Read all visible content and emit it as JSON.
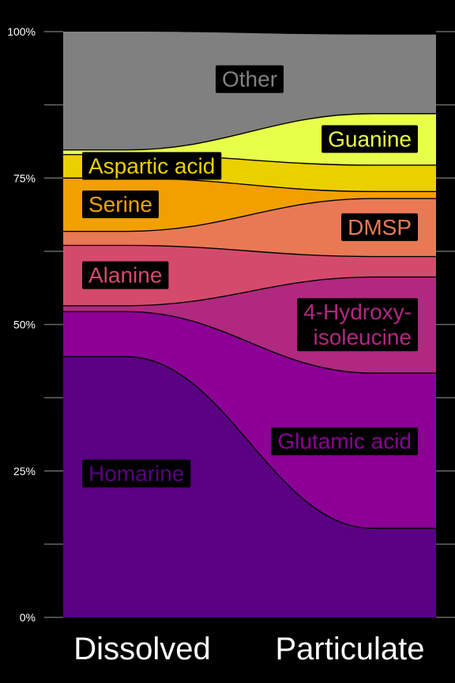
{
  "chart_data": {
    "type": "area",
    "title": "",
    "xlabel": "",
    "ylabel": "",
    "categories": [
      "Dissolved",
      "Particulate"
    ],
    "ylim": [
      0,
      100
    ],
    "yticks": [
      0,
      25,
      50,
      75,
      100
    ],
    "ytick_labels": [
      "0%",
      "25%",
      "50%",
      "75%",
      "100%"
    ],
    "background": "#000000",
    "series": [
      {
        "name": "Homarine",
        "label": [
          "Homarine"
        ],
        "values": [
          44.5,
          15.2
        ],
        "color": "#5a0083",
        "label_side": "left"
      },
      {
        "name": "Glutamic acid",
        "label": [
          "Glutamic acid"
        ],
        "values": [
          7.7,
          26.5
        ],
        "color": "#8c0096",
        "label_side": "right"
      },
      {
        "name": "4-Hydroxy-isoleucine",
        "label": [
          "4-Hydroxy-",
          "isoleucine"
        ],
        "values": [
          1.0,
          16.4
        ],
        "color": "#b02880",
        "label_side": "right"
      },
      {
        "name": "Alanine",
        "label": [
          "Alanine"
        ],
        "values": [
          10.3,
          3.5
        ],
        "color": "#d44a6c",
        "label_side": "left"
      },
      {
        "name": "DMSP",
        "label": [
          "DMSP"
        ],
        "values": [
          2.4,
          9.9
        ],
        "color": "#e87954",
        "label_side": "right"
      },
      {
        "name": "Serine",
        "label": [
          "Serine"
        ],
        "values": [
          9.1,
          1.2
        ],
        "color": "#f2a000",
        "label_side": "left"
      },
      {
        "name": "Aspartic acid",
        "label": [
          "Aspartic acid"
        ],
        "values": [
          4.0,
          4.5
        ],
        "color": "#ebd000",
        "label_side": "left"
      },
      {
        "name": "Guanine",
        "label": [
          "Guanine"
        ],
        "values": [
          0.8,
          8.8
        ],
        "color": "#e8ff4a",
        "label_side": "right"
      },
      {
        "name": "Other",
        "label": [
          "Other"
        ],
        "values": [
          20.2,
          13.5
        ],
        "color": "#808080",
        "label_side": "center"
      }
    ]
  }
}
